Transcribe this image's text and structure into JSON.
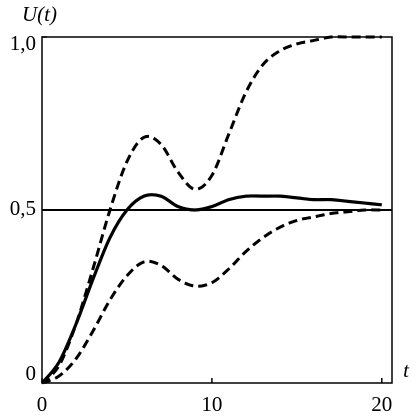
{
  "chart_data": {
    "type": "line",
    "y_label": "U(t)",
    "x_label": "t",
    "x": [
      0,
      1,
      2,
      3,
      4,
      5,
      6,
      7,
      8,
      9,
      10,
      11,
      12,
      13,
      14,
      15,
      16,
      17,
      18,
      19,
      20
    ],
    "series": [
      {
        "color": "#000000",
        "style": "dashed",
        "values": [
          0,
          0.05,
          0.17,
          0.33,
          0.5,
          0.64,
          0.71,
          0.69,
          0.61,
          0.56,
          0.6,
          0.72,
          0.84,
          0.92,
          0.96,
          0.98,
          0.99,
          1.0,
          1.0,
          1.0,
          1.0
        ]
      },
      {
        "color": "#000000",
        "style": "solid",
        "values": [
          0,
          0.06,
          0.17,
          0.3,
          0.42,
          0.5,
          0.54,
          0.54,
          0.51,
          0.5,
          0.51,
          0.53,
          0.54,
          0.54,
          0.54,
          0.535,
          0.53,
          0.53,
          0.525,
          0.52,
          0.515
        ]
      },
      {
        "color": "#000000",
        "style": "dashed",
        "values": [
          0,
          0.02,
          0.07,
          0.15,
          0.24,
          0.31,
          0.35,
          0.34,
          0.3,
          0.28,
          0.29,
          0.33,
          0.38,
          0.42,
          0.45,
          0.47,
          0.48,
          0.49,
          0.495,
          0.5,
          0.5
        ]
      }
    ],
    "hline": 0.5,
    "xlim": [
      0,
      20.6
    ],
    "ylim": [
      0,
      1
    ],
    "xticks": [
      0,
      10,
      20
    ],
    "yticks": [
      0,
      {
        "value": 0.5,
        "label": "0,5"
      },
      {
        "value": 1,
        "label": "1,0"
      }
    ]
  }
}
